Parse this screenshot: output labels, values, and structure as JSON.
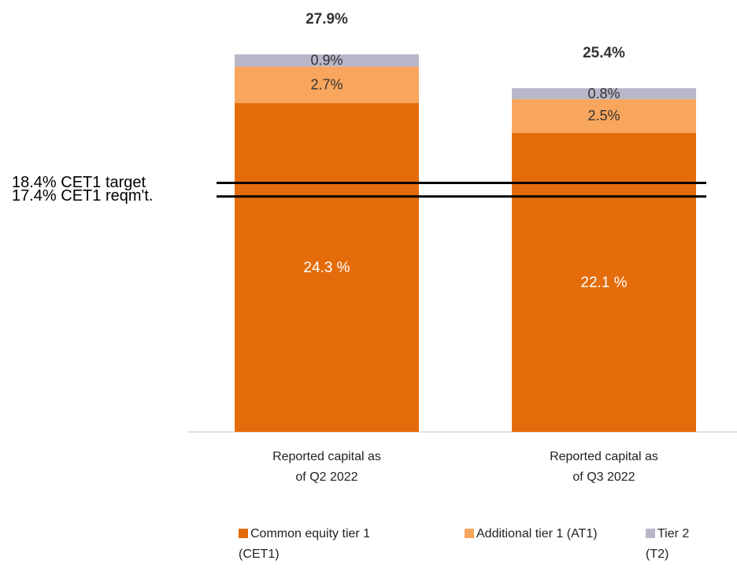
{
  "chart_data": {
    "type": "stacked_bar",
    "categories": [
      "Reported capital as of Q2 2022",
      "Reported capital as of Q3 2022"
    ],
    "series": [
      {
        "name": "Common equity tier 1 (CET1)",
        "color": "#e46c0a",
        "values": [
          24.3,
          22.1
        ],
        "value_labels": [
          "24.3 %",
          "22.1 %"
        ],
        "label_color": "#ffffff"
      },
      {
        "name": "Additional tier 1 (AT1)",
        "color": "#f8a65e",
        "values": [
          2.7,
          2.5
        ],
        "value_labels": [
          "2.7%",
          "2.5%"
        ],
        "label_color": "#333333"
      },
      {
        "name": "Tier 2 (T2)",
        "color": "#b8b7c9",
        "values": [
          0.9,
          0.8
        ],
        "value_labels": [
          "0.9%",
          "0.8%"
        ],
        "label_color": "#333333"
      }
    ],
    "totals": {
      "values": [
        27.9,
        25.4
      ],
      "value_labels": [
        "27.9%",
        "25.4%"
      ]
    },
    "reference_lines": [
      {
        "value": 18.4,
        "label": "18.4% CET1 target",
        "color": "#000000"
      },
      {
        "value": 17.4,
        "label": "17.4% CET1 reqm't.",
        "color": "#000000"
      }
    ],
    "ylim": [
      0,
      30
    ],
    "legend": "bottom"
  }
}
